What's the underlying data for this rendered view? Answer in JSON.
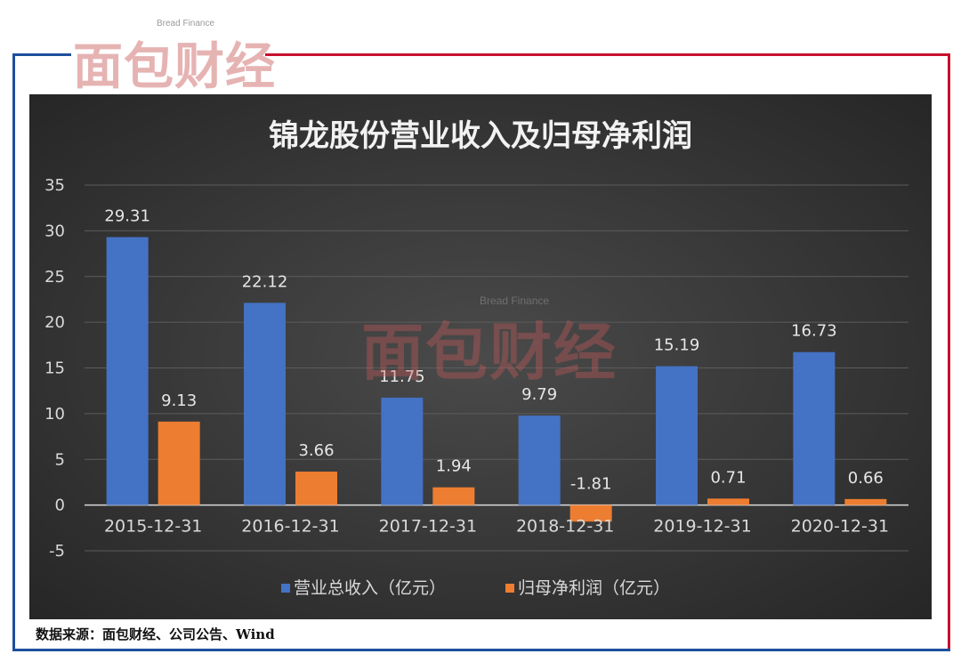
{
  "brand": {
    "name_cn": "面包财经",
    "name_en": "Bread Finance"
  },
  "colors": {
    "revenue": "#4472c4",
    "profit": "#ed7d31",
    "frame_blue": "#1e4f9c",
    "frame_red": "#c8102e"
  },
  "chart_data": {
    "type": "bar",
    "title": "锦龙股份营业收入及归母净利润",
    "categories": [
      "2015-12-31",
      "2016-12-31",
      "2017-12-31",
      "2018-12-31",
      "2019-12-31",
      "2020-12-31"
    ],
    "series": [
      {
        "name": "营业总收入（亿元）",
        "values": [
          29.31,
          22.12,
          11.75,
          9.79,
          15.19,
          16.73
        ],
        "labels": [
          "29.31",
          "22.12",
          "11.75",
          "9.79",
          "15.19",
          "16.73"
        ]
      },
      {
        "name": "归母净利润（亿元）",
        "values": [
          9.13,
          3.66,
          1.94,
          -1.81,
          0.71,
          0.66
        ],
        "labels": [
          "9.13",
          "3.66",
          "1.94",
          "-1.81",
          "0.71",
          "0.66"
        ]
      }
    ],
    "ylim": [
      -5,
      35
    ],
    "yticks": [
      "-5",
      "0",
      "5",
      "10",
      "15",
      "20",
      "25",
      "30",
      "35"
    ],
    "grid": true,
    "legend_position": "bottom"
  },
  "source_note": "数据来源：面包财经、公司公告、Wind"
}
